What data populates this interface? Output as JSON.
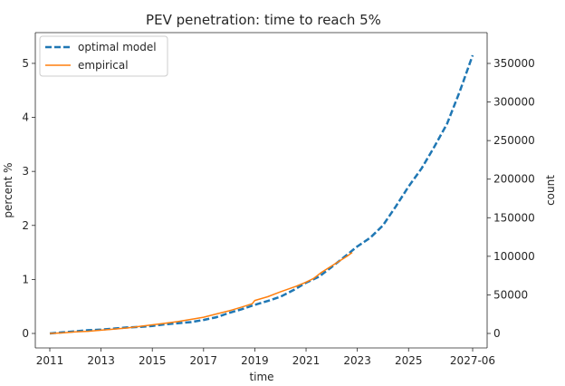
{
  "chart_data": {
    "type": "line",
    "title": "PEV penetration: time to reach 5%",
    "xlabel": "time",
    "ylabel_left": "percent %",
    "ylabel_right": "count",
    "xlim": [
      2011,
      2027.5
    ],
    "ylim_left": [
      0,
      5.15
    ],
    "ylim_right": [
      0,
      371000
    ],
    "x_ticks": [
      2011,
      2013,
      2015,
      2017,
      2019,
      2021,
      2023,
      2025,
      2027.5
    ],
    "x_tick_labels": [
      "2011",
      "2013",
      "2015",
      "2017",
      "2019",
      "2021",
      "2023",
      "2025",
      "2027-06"
    ],
    "y_left_ticks": [
      0,
      1,
      2,
      3,
      4,
      5
    ],
    "y_left_tick_labels": [
      "0",
      "1",
      "2",
      "3",
      "4",
      "5"
    ],
    "y_right_ticks": [
      0,
      50000,
      100000,
      150000,
      200000,
      250000,
      300000,
      350000
    ],
    "y_right_tick_labels": [
      "0",
      "50000",
      "100000",
      "150000",
      "200000",
      "250000",
      "300000",
      "350000"
    ],
    "grid": false,
    "legend_position": "top-left",
    "series": [
      {
        "name": "optimal model",
        "style": "dashed",
        "color": "#1f77b4",
        "axis": "left",
        "x": [
          2011,
          2011.5,
          2012,
          2012.5,
          2013,
          2013.5,
          2014,
          2014.5,
          2015,
          2015.5,
          2016,
          2016.5,
          2017,
          2017.5,
          2018,
          2018.5,
          2019,
          2019.5,
          2020,
          2020.5,
          2021,
          2021.5,
          2022,
          2022.5,
          2023,
          2023.5,
          2024,
          2024.5,
          2025,
          2025.5,
          2026,
          2026.5,
          2027,
          2027.5
        ],
        "values": [
          0.0,
          0.02,
          0.04,
          0.06,
          0.07,
          0.09,
          0.11,
          0.12,
          0.14,
          0.17,
          0.19,
          0.21,
          0.25,
          0.3,
          0.38,
          0.45,
          0.53,
          0.6,
          0.68,
          0.8,
          0.94,
          1.05,
          1.23,
          1.42,
          1.61,
          1.77,
          2.0,
          2.35,
          2.72,
          3.05,
          3.45,
          3.88,
          4.48,
          5.15
        ]
      },
      {
        "name": "empirical",
        "style": "solid",
        "color": "#ff7f0e",
        "axis": "left",
        "x": [
          2011,
          2011.5,
          2012,
          2012.5,
          2013,
          2013.5,
          2014,
          2014.5,
          2015,
          2015.5,
          2016,
          2016.5,
          2017,
          2017.5,
          2018,
          2018.5,
          2018.9,
          2019,
          2019.5,
          2020,
          2020.3,
          2020.6,
          2021,
          2021.3,
          2021.6,
          2022,
          2022.3,
          2022.6,
          2022.8
        ],
        "values": [
          0.0,
          0.01,
          0.03,
          0.04,
          0.06,
          0.08,
          0.1,
          0.13,
          0.16,
          0.19,
          0.22,
          0.26,
          0.3,
          0.36,
          0.42,
          0.49,
          0.55,
          0.61,
          0.68,
          0.77,
          0.82,
          0.87,
          0.95,
          1.02,
          1.13,
          1.25,
          1.34,
          1.43,
          1.5
        ]
      }
    ]
  }
}
